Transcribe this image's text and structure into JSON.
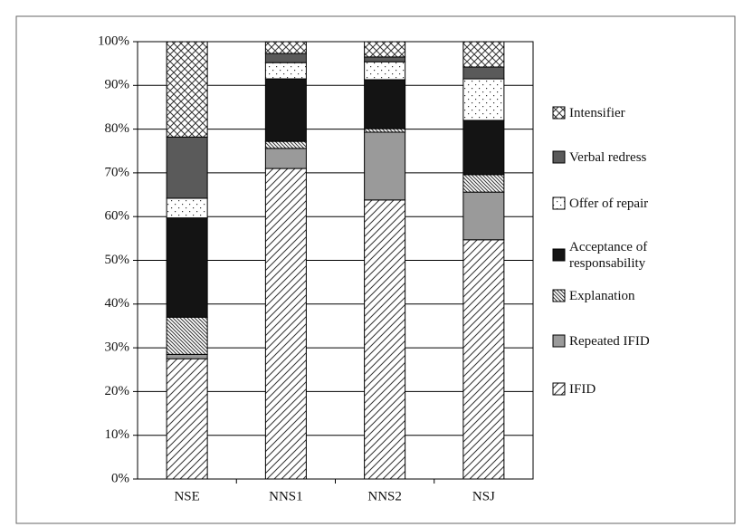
{
  "chart_data": {
    "type": "stacked-bar-percent",
    "categories": [
      "NSE",
      "NNS1",
      "NNS2",
      "NSJ"
    ],
    "ylim": [
      0,
      100
    ],
    "yticks": [
      {
        "value": 0,
        "label": "0%"
      },
      {
        "value": 10,
        "label": "10%"
      },
      {
        "value": 20,
        "label": "20%"
      },
      {
        "value": 30,
        "label": "30%"
      },
      {
        "value": 40,
        "label": "40%"
      },
      {
        "value": 50,
        "label": "50%"
      },
      {
        "value": 60,
        "label": "60%"
      },
      {
        "value": 70,
        "label": "70%"
      },
      {
        "value": 80,
        "label": "80%"
      },
      {
        "value": 90,
        "label": "90%"
      },
      {
        "value": 100,
        "label": "100%"
      }
    ],
    "grid": true,
    "legend": "right",
    "series": [
      {
        "name": "IFID",
        "color": "#333333",
        "pattern": "slash-hatch",
        "values": [
          27.5,
          71,
          63.8,
          54.7
        ]
      },
      {
        "name": "Repeated IFID",
        "color": "#9a9a9a",
        "pattern": "solid",
        "values": [
          1,
          4.6,
          15.5,
          10.9
        ]
      },
      {
        "name": "Explanation",
        "color": "#333333",
        "pattern": "backslash-hatch",
        "values": [
          8.5,
          1.6,
          0.8,
          4
        ]
      },
      {
        "name": "Acceptance of responsability",
        "color": "#141414",
        "pattern": "solid",
        "values": [
          22.7,
          14.3,
          11.2,
          12.4
        ]
      },
      {
        "name": "Offer of repair",
        "color": "#333333",
        "pattern": "dots",
        "values": [
          4.5,
          3.7,
          4.1,
          9.5
        ]
      },
      {
        "name": "Verbal redress",
        "color": "#5a5a5a",
        "pattern": "solid",
        "values": [
          14,
          2.1,
          1.1,
          2.7
        ]
      },
      {
        "name": "Intensifier",
        "color": "#333333",
        "pattern": "crosshatch",
        "values": [
          21.8,
          2.7,
          3.5,
          5.8
        ]
      }
    ]
  }
}
